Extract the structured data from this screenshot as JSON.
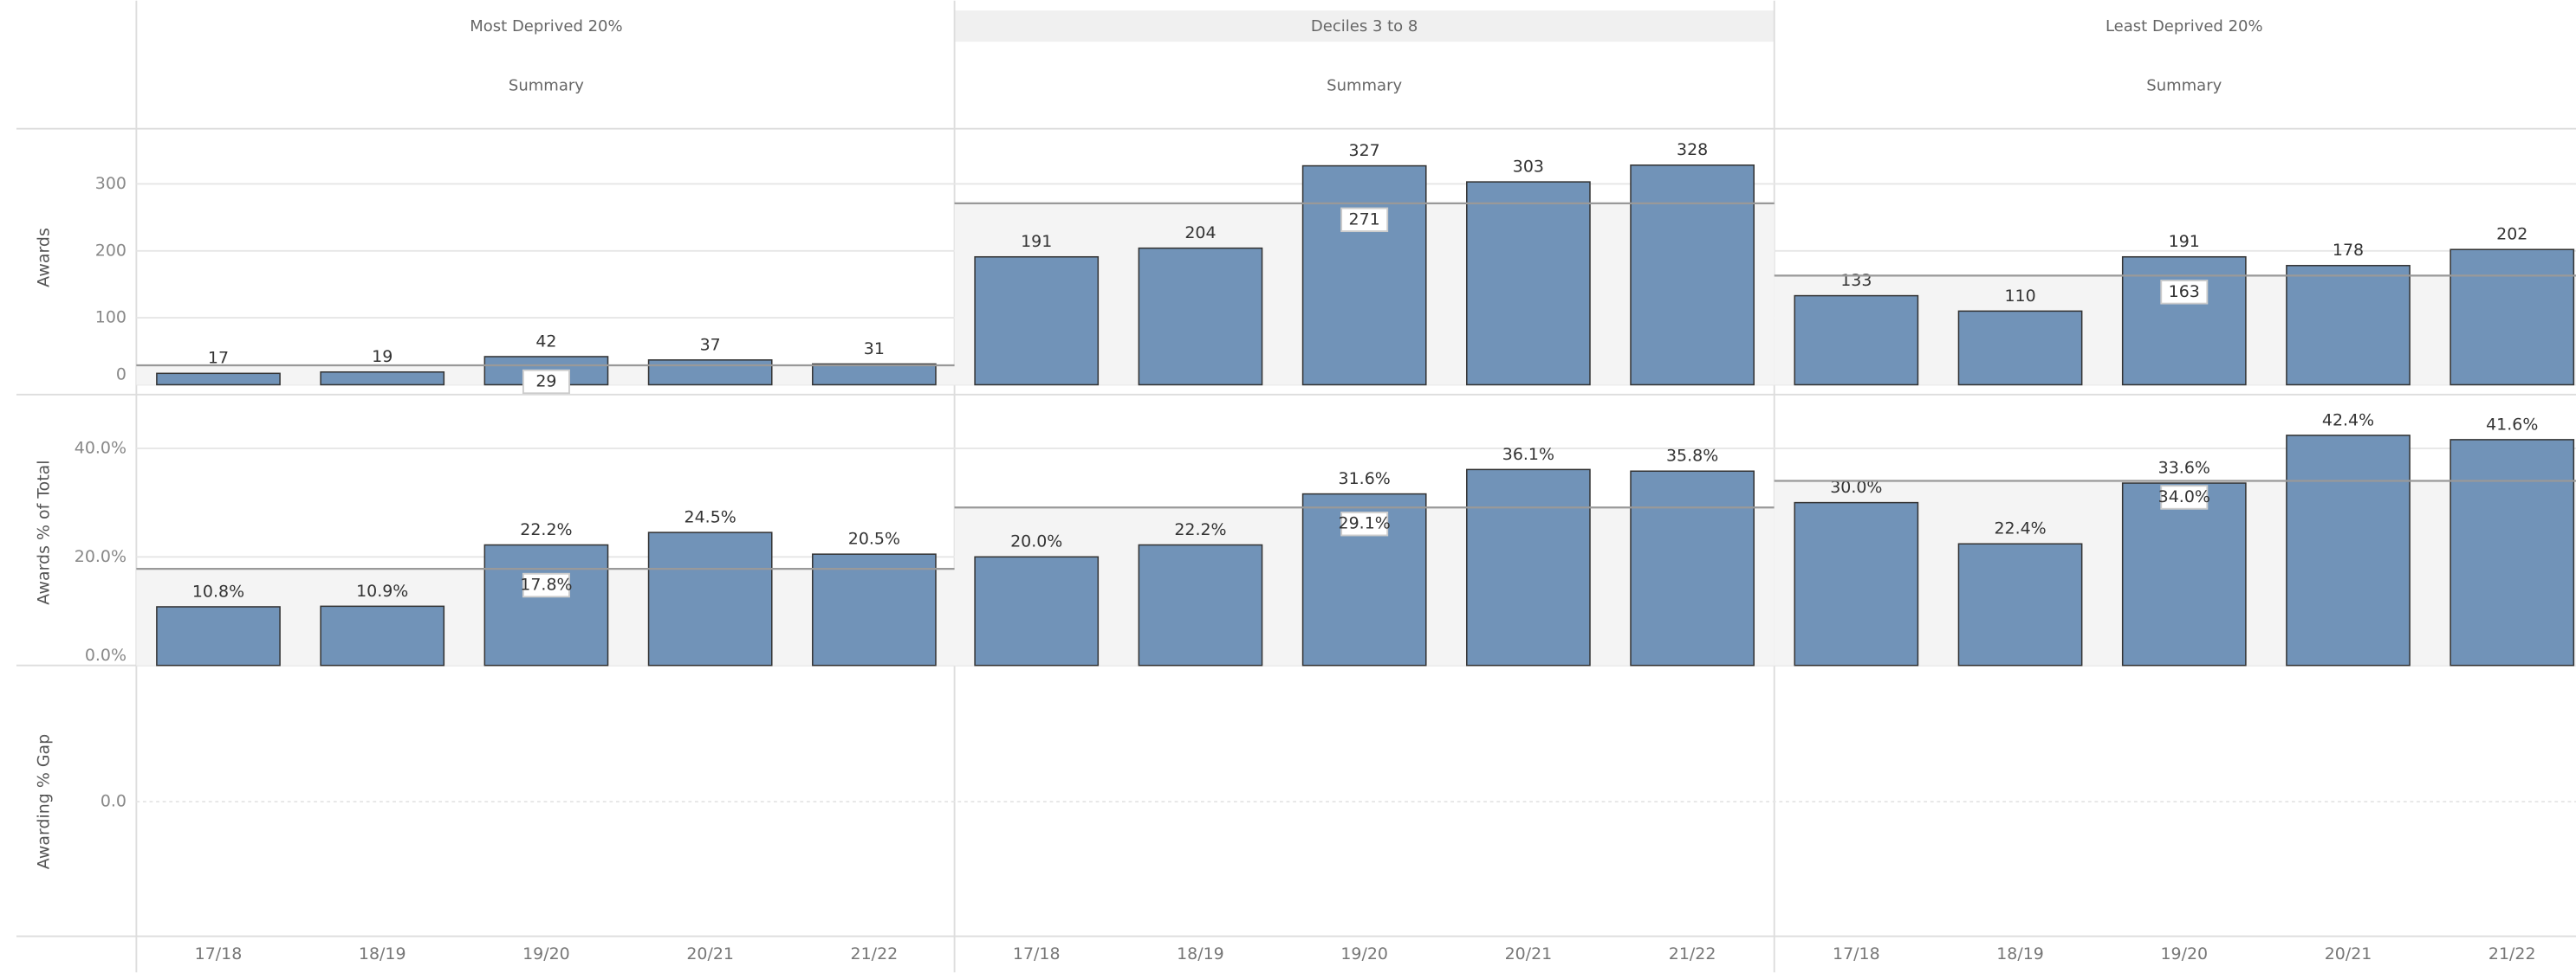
{
  "chart_data": {
    "type": "bar",
    "color": "#7193b8",
    "categories": [
      "17/18",
      "18/19",
      "19/20",
      "20/21",
      "21/22"
    ],
    "columns": [
      {
        "title": "Most Deprived 20%",
        "subtitle": "Summary"
      },
      {
        "title": "Deciles 3 to 8",
        "subtitle": "Summary"
      },
      {
        "title": "Least Deprived 20%",
        "subtitle": "Summary"
      }
    ],
    "rows": [
      {
        "axis_label": "Awards",
        "ylim": [
          0,
          380
        ],
        "yticks": [
          0,
          100,
          200,
          300
        ],
        "panels": [
          {
            "values": [
              17,
              19,
              42,
              37,
              31
            ],
            "reference": 29
          },
          {
            "values": [
              191,
              204,
              327,
              303,
              328
            ],
            "reference": 271
          },
          {
            "values": [
              133,
              110,
              191,
              178,
              202
            ],
            "reference": 163
          }
        ]
      },
      {
        "axis_label": "Awards % of Total",
        "ylim": [
          0,
          49
        ],
        "yticks": [
          {
            "value": 0,
            "label": "0.0%"
          },
          {
            "value": 20,
            "label": "20.0%"
          },
          {
            "value": 40,
            "label": "40.0%"
          }
        ],
        "panels": [
          {
            "values": [
              10.8,
              10.9,
              22.2,
              24.5,
              20.5
            ],
            "value_labels": [
              "10.8%",
              "10.9%",
              "22.2%",
              "24.5%",
              "20.5%"
            ],
            "reference": 17.8,
            "reference_label": "17.8%"
          },
          {
            "values": [
              20.0,
              22.2,
              31.6,
              36.1,
              35.8
            ],
            "value_labels": [
              "20.0%",
              "22.2%",
              "31.6%",
              "36.1%",
              "35.8%"
            ],
            "reference": 29.1,
            "reference_label": "29.1%"
          },
          {
            "values": [
              30.0,
              22.4,
              33.6,
              42.4,
              41.6
            ],
            "value_labels": [
              "30.0%",
              "22.4%",
              "33.6%",
              "42.4%",
              "41.6%"
            ],
            "reference": 34.0,
            "reference_label": "34.0%"
          }
        ]
      },
      {
        "axis_label": "Awarding % Gap",
        "ylim": [
          -1,
          1
        ],
        "yticks": [
          {
            "value": 0,
            "label": "0.0"
          }
        ],
        "panels": [
          {
            "values": []
          },
          {
            "values": []
          },
          {
            "values": []
          }
        ]
      }
    ]
  }
}
